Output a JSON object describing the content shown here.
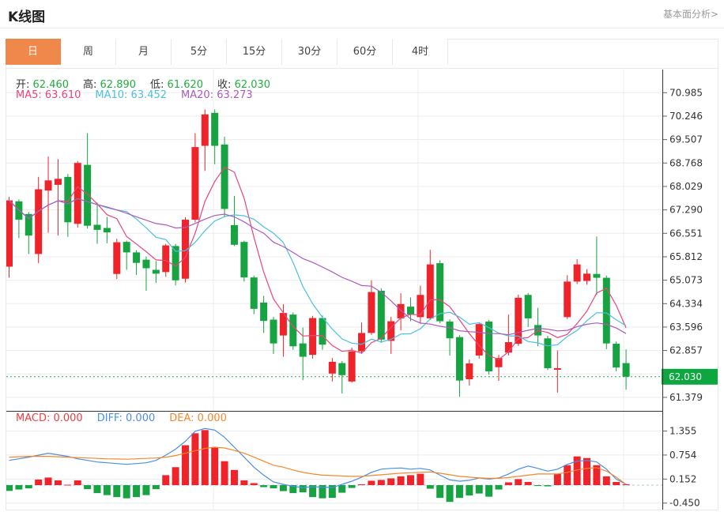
{
  "header": {
    "title": "K线图",
    "link": "基本面分析>"
  },
  "tabs": {
    "items": [
      {
        "label": "日",
        "active": true
      },
      {
        "label": "周",
        "active": false
      },
      {
        "label": "月",
        "active": false
      },
      {
        "label": "5分",
        "active": false
      },
      {
        "label": "15分",
        "active": false
      },
      {
        "label": "30分",
        "active": false
      },
      {
        "label": "60分",
        "active": false
      },
      {
        "label": "4时",
        "active": false
      }
    ]
  },
  "legend": {
    "ohlc": [
      {
        "label": "开:",
        "value": "62.460"
      },
      {
        "label": "高:",
        "value": "62.890"
      },
      {
        "label": "低:",
        "value": "61.620"
      },
      {
        "label": "收:",
        "value": "62.030"
      }
    ],
    "ma": [
      {
        "label": "MA5:",
        "value": "63.610",
        "color": "#e8457c"
      },
      {
        "label": "MA10:",
        "value": "63.452",
        "color": "#4cc0dc"
      },
      {
        "label": "MA20:",
        "value": "63.273",
        "color": "#aa5abe"
      }
    ]
  },
  "macd_legend": [
    {
      "label": "MACD:",
      "value": "0.000",
      "color": "#ee3e3c"
    },
    {
      "label": "DIFF:",
      "value": "0.000",
      "color": "#4a90e2"
    },
    {
      "label": "DEA:",
      "value": "0.000",
      "color": "#f5862c"
    }
  ],
  "colors": {
    "up": "#ef232a",
    "down": "#17a341",
    "ma5": "#e8457c",
    "ma10": "#4cc0dc",
    "ma20": "#aa5abe",
    "diff": "#4a90e2",
    "dea": "#f5862c",
    "grid": "#ececec",
    "axis": "#333333",
    "tick_text": "#333333",
    "badge_bg": "#0ca73e",
    "badge_text": "#ffffff",
    "price_line": "#1fa84d",
    "zero_dash": "#a9c4e4",
    "ohlc_value": "#1fae3d",
    "tab_active_bg": "#f0874b"
  },
  "chart_data": {
    "type": "candlestick",
    "panels": [
      "price",
      "MACD"
    ],
    "timeframe_selected": "日",
    "ohlc_readout": {
      "open": 62.46,
      "high": 62.89,
      "low": 61.62,
      "close": 62.03
    },
    "ma_values": {
      "MA5": 63.61,
      "MA10": 63.452,
      "MA20": 63.273
    },
    "ma_periods": [
      5,
      10,
      20
    ],
    "current_price": {
      "value": 62.03,
      "label": "62.030"
    },
    "price_axis": {
      "ticks": [
        {
          "v": 70.985,
          "label": "70.985"
        },
        {
          "v": 70.246,
          "label": "70.246"
        },
        {
          "v": 69.507,
          "label": "69.507"
        },
        {
          "v": 68.768,
          "label": "68.768"
        },
        {
          "v": 68.029,
          "label": "68.029"
        },
        {
          "v": 67.29,
          "label": "67.290"
        },
        {
          "v": 66.551,
          "label": "66.551"
        },
        {
          "v": 65.812,
          "label": "65.812"
        },
        {
          "v": 65.073,
          "label": "65.073"
        },
        {
          "v": 64.334,
          "label": "64.334"
        },
        {
          "v": 63.596,
          "label": "63.596"
        },
        {
          "v": 62.857,
          "label": "62.857"
        },
        {
          "v": 62.118,
          "label": ""
        },
        {
          "v": 61.379,
          "label": "61.379"
        }
      ]
    },
    "macd_axis": {
      "ticks": [
        {
          "v": 1.355,
          "label": "1.355"
        },
        {
          "v": 0.754,
          "label": "0.754"
        },
        {
          "v": 0.152,
          "label": "0.152"
        },
        {
          "v": -0.45,
          "label": "-0.450"
        }
      ],
      "zero": 0
    },
    "v_gridlines_x": [
      270,
      529,
      789
    ],
    "candles": [
      [
        65.5,
        67.7,
        65.15,
        67.59
      ],
      [
        67.56,
        67.62,
        66.4,
        66.98
      ],
      [
        67.16,
        67.22,
        65.9,
        66.48
      ],
      [
        65.9,
        68.33,
        65.61,
        67.94
      ],
      [
        67.9,
        68.97,
        66.57,
        68.22
      ],
      [
        68.08,
        68.89,
        66.48,
        68.27
      ],
      [
        68.33,
        68.42,
        66.44,
        66.9
      ],
      [
        66.85,
        68.83,
        66.73,
        68.77
      ],
      [
        68.71,
        69.71,
        66.7,
        66.79
      ],
      [
        66.82,
        67.52,
        66.22,
        66.66
      ],
      [
        66.72,
        67.07,
        66.24,
        66.58
      ],
      [
        65.27,
        66.38,
        65.11,
        66.27
      ],
      [
        66.28,
        66.32,
        65.4,
        65.95
      ],
      [
        65.95,
        66.02,
        65.24,
        65.62
      ],
      [
        65.72,
        65.82,
        64.74,
        65.45
      ],
      [
        65.4,
        65.68,
        64.99,
        65.28
      ],
      [
        65.33,
        66.22,
        65.18,
        66.17
      ],
      [
        66.15,
        66.22,
        64.91,
        65.07
      ],
      [
        65.12,
        67.06,
        65.0,
        66.98
      ],
      [
        66.98,
        69.71,
        66.9,
        69.27
      ],
      [
        69.31,
        70.46,
        68.52,
        70.3
      ],
      [
        70.35,
        70.46,
        68.73,
        69.31
      ],
      [
        69.35,
        69.6,
        67.07,
        67.32
      ],
      [
        66.81,
        67.73,
        66.15,
        66.19
      ],
      [
        66.28,
        66.32,
        65.03,
        65.16
      ],
      [
        65.16,
        65.22,
        64.0,
        64.17
      ],
      [
        64.37,
        64.58,
        63.41,
        63.79
      ],
      [
        63.83,
        63.92,
        62.75,
        63.08
      ],
      [
        63.33,
        64.32,
        62.66,
        64.04
      ],
      [
        63.99,
        64.06,
        62.88,
        62.99
      ],
      [
        63.08,
        63.58,
        61.92,
        62.66
      ],
      [
        62.72,
        63.95,
        62.6,
        63.88
      ],
      [
        63.88,
        63.96,
        62.88,
        63.04
      ],
      [
        62.13,
        62.62,
        61.88,
        62.5
      ],
      [
        62.46,
        62.52,
        61.5,
        62.08
      ],
      [
        61.88,
        62.95,
        61.84,
        62.83
      ],
      [
        62.83,
        63.74,
        62.75,
        63.41
      ],
      [
        63.41,
        65.07,
        63.35,
        64.7
      ],
      [
        64.74,
        64.82,
        63.1,
        63.2
      ],
      [
        63.16,
        63.92,
        62.75,
        63.78
      ],
      [
        63.87,
        64.66,
        63.49,
        64.32
      ],
      [
        64.24,
        64.53,
        63.78,
        63.99
      ],
      [
        63.91,
        64.9,
        63.7,
        64.61
      ],
      [
        63.87,
        66.03,
        63.82,
        65.57
      ],
      [
        65.61,
        65.7,
        63.72,
        63.78
      ],
      [
        63.77,
        63.84,
        62.7,
        63.24
      ],
      [
        63.28,
        63.34,
        61.4,
        61.91
      ],
      [
        61.95,
        62.57,
        61.75,
        62.45
      ],
      [
        62.7,
        63.74,
        62.6,
        63.69
      ],
      [
        63.77,
        63.82,
        62.1,
        62.2
      ],
      [
        62.33,
        62.72,
        61.9,
        62.62
      ],
      [
        62.79,
        63.99,
        62.7,
        63.12
      ],
      [
        63.07,
        64.62,
        63.0,
        64.52
      ],
      [
        64.61,
        64.67,
        63.6,
        63.87
      ],
      [
        63.66,
        64.2,
        62.99,
        63.33
      ],
      [
        63.24,
        63.32,
        62.24,
        62.3
      ],
      [
        62.25,
        62.86,
        61.53,
        62.3
      ],
      [
        63.91,
        65.23,
        63.85,
        65.03
      ],
      [
        65.03,
        65.74,
        64.95,
        65.57
      ],
      [
        65.05,
        65.42,
        64.93,
        65.28
      ],
      [
        65.27,
        66.45,
        64.61,
        65.15
      ],
      [
        65.15,
        65.22,
        62.9,
        63.08
      ],
      [
        63.07,
        63.14,
        62.2,
        62.32
      ],
      [
        62.46,
        62.89,
        61.62,
        62.03
      ]
    ],
    "macd": {
      "values": {
        "MACD": 0.0,
        "DIFF": 0.0,
        "DEA": 0.0
      },
      "hist": [
        -0.145,
        -0.11,
        -0.08,
        0.14,
        0.19,
        0.12,
        0.01,
        0.12,
        -0.1,
        -0.2,
        -0.25,
        -0.3,
        -0.33,
        -0.3,
        -0.25,
        -0.1,
        0.25,
        0.45,
        1.0,
        1.3,
        1.38,
        0.95,
        0.6,
        0.38,
        0.12,
        0.05,
        -0.05,
        -0.08,
        -0.15,
        -0.2,
        -0.18,
        -0.3,
        -0.33,
        -0.32,
        -0.19,
        -0.07,
        0.02,
        0.11,
        0.13,
        0.17,
        0.22,
        0.25,
        0.285,
        -0.09,
        -0.32,
        -0.42,
        -0.32,
        -0.26,
        -0.21,
        -0.29,
        -0.11,
        0.07,
        0.15,
        0.08,
        -0.02,
        -0.03,
        0.28,
        0.5,
        0.72,
        0.68,
        0.5,
        0.22,
        0.08,
        0.02
      ],
      "diff": [
        0.62,
        0.66,
        0.7,
        0.75,
        0.8,
        0.76,
        0.72,
        0.66,
        0.62,
        0.58,
        0.56,
        0.54,
        0.52,
        0.54,
        0.56,
        0.62,
        0.75,
        0.9,
        1.1,
        1.35,
        1.42,
        1.38,
        1.2,
        0.95,
        0.7,
        0.45,
        0.25,
        0.08,
        0.02,
        -0.03,
        -0.06,
        -0.04,
        -0.05,
        -0.06,
        0.02,
        0.1,
        0.2,
        0.32,
        0.4,
        0.42,
        0.43,
        0.4,
        0.42,
        0.38,
        0.25,
        0.13,
        0.1,
        0.12,
        0.18,
        0.15,
        0.18,
        0.28,
        0.4,
        0.48,
        0.42,
        0.35,
        0.4,
        0.52,
        0.6,
        0.62,
        0.58,
        0.4,
        0.15,
        0.02
      ],
      "dea": [
        0.7,
        0.71,
        0.72,
        0.72,
        0.72,
        0.71,
        0.7,
        0.69,
        0.68,
        0.67,
        0.66,
        0.655,
        0.65,
        0.66,
        0.67,
        0.68,
        0.7,
        0.74,
        0.8,
        0.86,
        0.92,
        0.95,
        0.93,
        0.87,
        0.8,
        0.7,
        0.6,
        0.5,
        0.45,
        0.38,
        0.32,
        0.28,
        0.25,
        0.24,
        0.23,
        0.22,
        0.22,
        0.24,
        0.26,
        0.28,
        0.3,
        0.31,
        0.32,
        0.33,
        0.3,
        0.26,
        0.22,
        0.2,
        0.18,
        0.17,
        0.17,
        0.19,
        0.22,
        0.25,
        0.28,
        0.28,
        0.28,
        0.32,
        0.38,
        0.42,
        0.44,
        0.35,
        0.2,
        0.02
      ]
    }
  }
}
